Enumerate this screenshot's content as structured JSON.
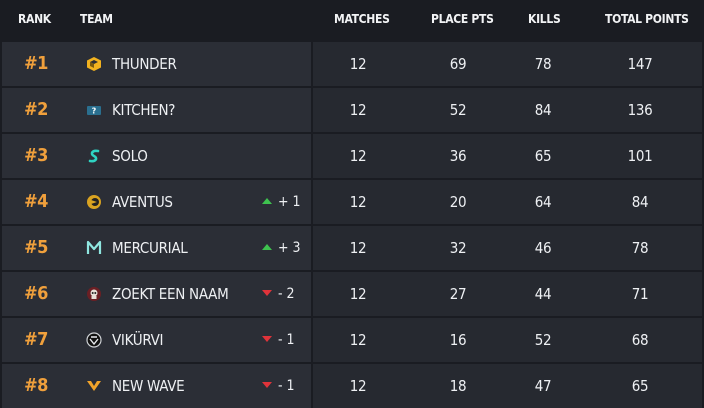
{
  "header": {
    "rank": "RANK",
    "team": "TEAM",
    "matches": "MATCHES",
    "place_pts": "PLACE PTS",
    "kills": "KILLS",
    "total_points": "TOTAL POINTS"
  },
  "rows": [
    {
      "rank": "#1",
      "team": "THUNDER",
      "logo": "thunder-logo-icon",
      "change": "",
      "change_dir": "",
      "matches": "12",
      "place_pts": "69",
      "kills": "78",
      "total": "147"
    },
    {
      "rank": "#2",
      "team": "KITCHEN?",
      "logo": "kitchen-logo-icon",
      "change": "",
      "change_dir": "",
      "matches": "12",
      "place_pts": "52",
      "kills": "84",
      "total": "136"
    },
    {
      "rank": "#3",
      "team": "SOLO",
      "logo": "solo-logo-icon",
      "change": "",
      "change_dir": "",
      "matches": "12",
      "place_pts": "36",
      "kills": "65",
      "total": "101"
    },
    {
      "rank": "#4",
      "team": "AVENTUS",
      "logo": "aventus-logo-icon",
      "change": "+ 1",
      "change_dir": "up",
      "matches": "12",
      "place_pts": "20",
      "kills": "64",
      "total": "84"
    },
    {
      "rank": "#5",
      "team": "MERCURIAL",
      "logo": "mercurial-logo-icon",
      "change": "+ 3",
      "change_dir": "up",
      "matches": "12",
      "place_pts": "32",
      "kills": "46",
      "total": "78"
    },
    {
      "rank": "#6",
      "team": "ZOEKT EEN NAAM",
      "logo": "zoekt-een-naam-logo-icon",
      "change": "- 2",
      "change_dir": "down",
      "matches": "12",
      "place_pts": "27",
      "kills": "44",
      "total": "71"
    },
    {
      "rank": "#7",
      "team": "VIKÜRVI",
      "logo": "vikurvi-logo-icon",
      "change": "- 1",
      "change_dir": "down",
      "matches": "12",
      "place_pts": "16",
      "kills": "52",
      "total": "68"
    },
    {
      "rank": "#8",
      "team": "NEW WAVE",
      "logo": "new-wave-logo-icon",
      "change": "- 1",
      "change_dir": "down",
      "matches": "12",
      "place_pts": "18",
      "kills": "47",
      "total": "65"
    }
  ],
  "colors": {
    "rank_accent": "#f0a03c",
    "up": "#3ec24f",
    "down": "#e0333a",
    "row_left_bg": "#2b2e36",
    "row_right_bg": "#262930",
    "page_bg": "#1a1c22"
  }
}
